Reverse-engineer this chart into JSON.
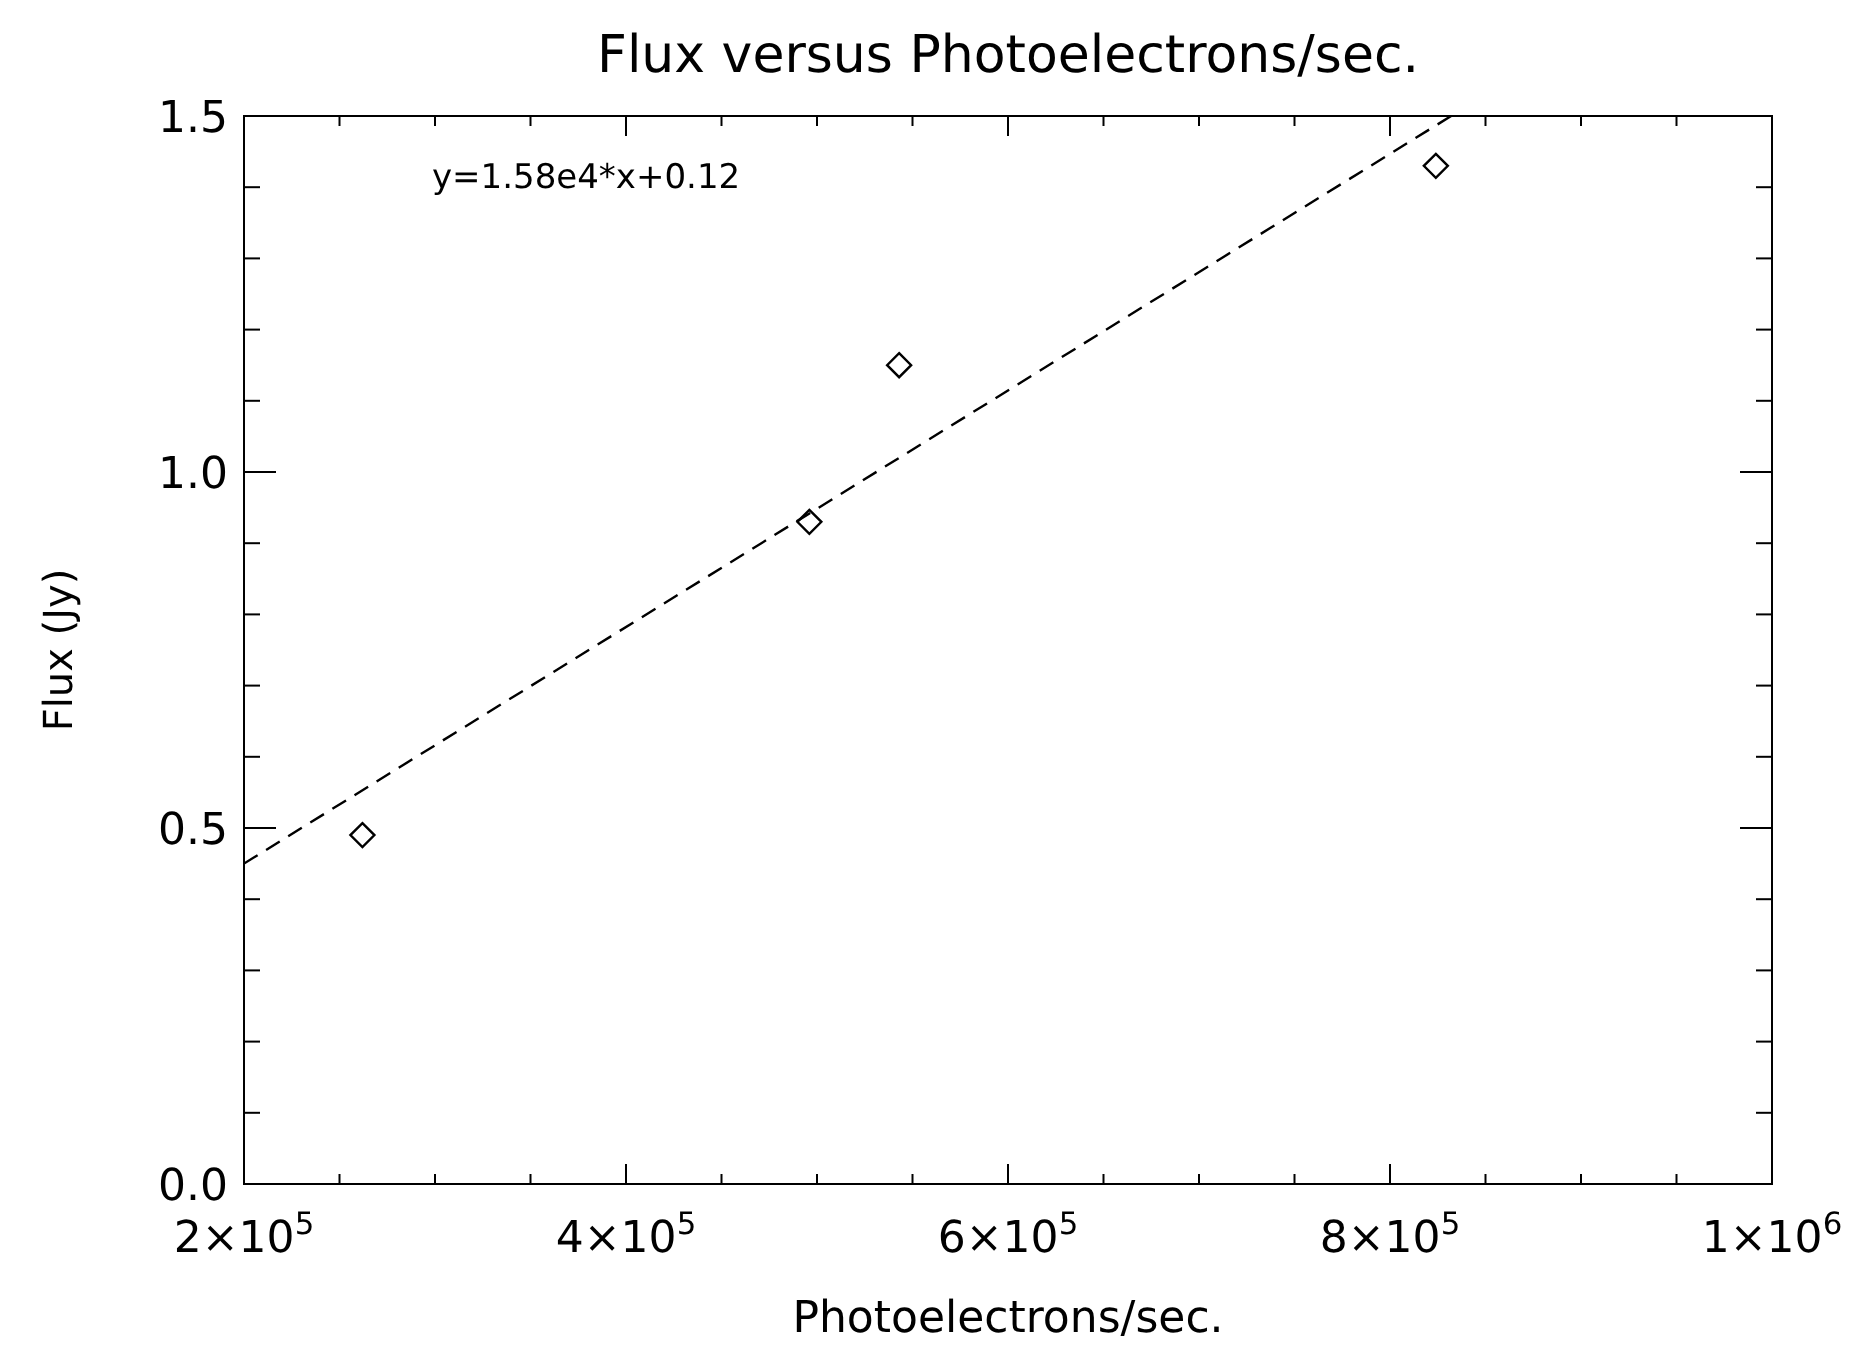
{
  "chart_data": {
    "type": "scatter",
    "title": "Flux versus Photoelectrons/sec.",
    "xlabel": "Photoelectrons/sec.",
    "ylabel": "Flux (Jy)",
    "annotations": [
      "y=1.58e4*x+0.12"
    ],
    "xlim": [
      200000,
      1000000
    ],
    "ylim": [
      0,
      1.5
    ],
    "xticks": [
      {
        "value": 200000,
        "label": "2×10$^{5}$"
      },
      {
        "value": 250000,
        "label": null
      },
      {
        "value": 300000,
        "label": null
      },
      {
        "value": 350000,
        "label": null
      },
      {
        "value": 400000,
        "label": "4×10$^{5}$"
      },
      {
        "value": 450000,
        "label": null
      },
      {
        "value": 500000,
        "label": null
      },
      {
        "value": 550000,
        "label": null
      },
      {
        "value": 600000,
        "label": "6×10$^{5}$"
      },
      {
        "value": 650000,
        "label": null
      },
      {
        "value": 700000,
        "label": null
      },
      {
        "value": 750000,
        "label": null
      },
      {
        "value": 800000,
        "label": "8×10$^{5}$"
      },
      {
        "value": 850000,
        "label": null
      },
      {
        "value": 900000,
        "label": null
      },
      {
        "value": 950000,
        "label": null
      },
      {
        "value": 1000000,
        "label": "1×10$^{6}$"
      }
    ],
    "yticks": [
      {
        "value": 0,
        "label": "0.0"
      },
      {
        "value": 0.1,
        "label": null
      },
      {
        "value": 0.2,
        "label": null
      },
      {
        "value": 0.3,
        "label": null
      },
      {
        "value": 0.4,
        "label": null
      },
      {
        "value": 0.5,
        "label": "0.5"
      },
      {
        "value": 0.6,
        "label": null
      },
      {
        "value": 0.7,
        "label": null
      },
      {
        "value": 0.8,
        "label": null
      },
      {
        "value": 0.9,
        "label": null
      },
      {
        "value": 1,
        "label": "1.0"
      },
      {
        "value": 1.1,
        "label": null
      },
      {
        "value": 1.2,
        "label": null
      },
      {
        "value": 1.3,
        "label": null
      },
      {
        "value": 1.4,
        "label": null
      },
      {
        "value": 1.5,
        "label": "1.5"
      }
    ],
    "grid": false,
    "series": [
      {
        "color": "#000000",
        "marker": "diamond",
        "x": [
          262000,
          496000,
          543000,
          824000
        ],
        "values": [
          0.49,
          0.93,
          1.15,
          1.43
        ]
      },
      {
        "type": "line",
        "color": "#000000",
        "line_style": "dashed",
        "marker": "none",
        "x": [
          200000,
          832000
        ],
        "values": [
          0.45,
          1.5
        ]
      }
    ]
  }
}
